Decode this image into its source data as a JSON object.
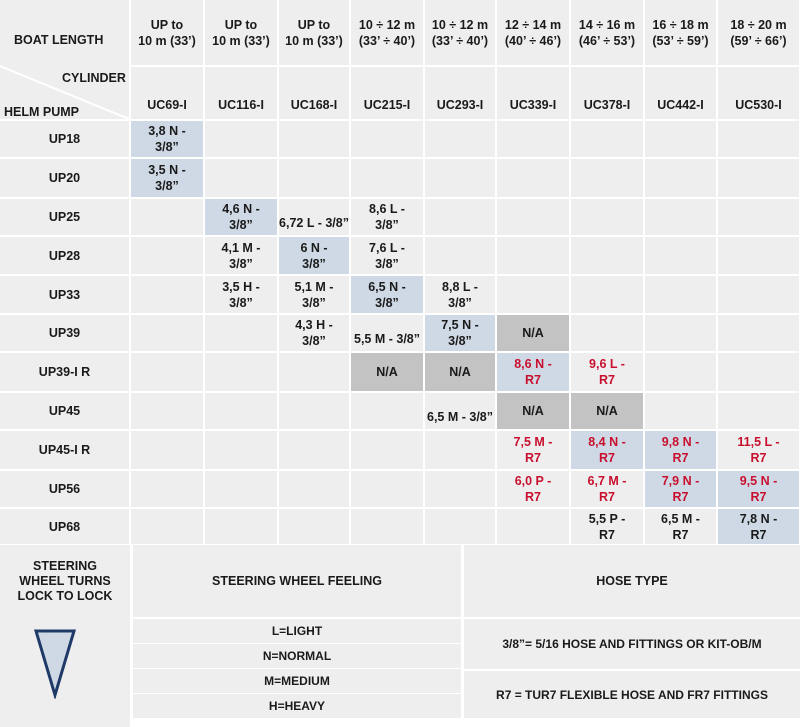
{
  "header": {
    "boat_length_label": "BOAT LENGTH",
    "cylinder_label": "CYLINDER",
    "helm_pump_label": "HELM PUMP",
    "lengths": [
      [
        "UP to",
        "10 m (33’)"
      ],
      [
        "UP to",
        "10 m (33’)"
      ],
      [
        "UP to",
        "10 m (33’)"
      ],
      [
        "10 ÷ 12 m",
        "(33’ ÷ 40’)"
      ],
      [
        "10 ÷ 12 m",
        "(33’ ÷ 40’)"
      ],
      [
        "12 ÷ 14 m",
        "(40’ ÷ 46’)"
      ],
      [
        "14 ÷ 16 m",
        "(46’ ÷ 53’)"
      ],
      [
        "16 ÷ 18 m",
        "(53’ ÷ 59’)"
      ],
      [
        "18 ÷ 20 m",
        "(59’ ÷ 66’)"
      ]
    ],
    "cylinders": [
      "UC69-I",
      "UC116-I",
      "UC168-I",
      "UC215-I",
      "UC293-I",
      "UC339-I",
      "UC378-I",
      "UC442-I",
      "UC530-I"
    ]
  },
  "pumps": [
    "UP18",
    "UP20",
    "UP25",
    "UP28",
    "UP33",
    "UP39",
    "UP39-I R",
    "UP45",
    "UP45-I R",
    "UP56",
    "UP68"
  ],
  "cells": [
    {
      "r": 0,
      "c": 0,
      "lines": [
        "3,8 N -",
        "3/8”"
      ],
      "bg": "blue"
    },
    {
      "r": 1,
      "c": 0,
      "lines": [
        "3,5 N -",
        "3/8”"
      ],
      "bg": "blue"
    },
    {
      "r": 2,
      "c": 1,
      "lines": [
        "4,6 N -",
        "3/8”"
      ],
      "bg": "blue"
    },
    {
      "r": 2,
      "c": 2,
      "lines": [
        "6,72 L - 3/8”"
      ]
    },
    {
      "r": 2,
      "c": 3,
      "lines": [
        "8,6 L -",
        "3/8”"
      ]
    },
    {
      "r": 3,
      "c": 1,
      "lines": [
        "4,1 M -",
        "3/8”"
      ]
    },
    {
      "r": 3,
      "c": 2,
      "lines": [
        "6 N -",
        "3/8”"
      ],
      "bg": "blue"
    },
    {
      "r": 3,
      "c": 3,
      "lines": [
        "7,6 L -",
        "3/8”"
      ]
    },
    {
      "r": 4,
      "c": 1,
      "lines": [
        "3,5 H -",
        "3/8”"
      ]
    },
    {
      "r": 4,
      "c": 2,
      "lines": [
        "5,1 M -",
        "3/8”"
      ]
    },
    {
      "r": 4,
      "c": 3,
      "lines": [
        "6,5 N -",
        "3/8”"
      ],
      "bg": "blue"
    },
    {
      "r": 4,
      "c": 4,
      "lines": [
        "8,8 L -",
        "3/8”"
      ]
    },
    {
      "r": 5,
      "c": 2,
      "lines": [
        "4,3 H -",
        "3/8”"
      ]
    },
    {
      "r": 5,
      "c": 3,
      "lines": [
        "5,5 M - 3/8”"
      ]
    },
    {
      "r": 5,
      "c": 4,
      "lines": [
        "7,5 N -",
        "3/8”"
      ],
      "bg": "blue"
    },
    {
      "r": 5,
      "c": 5,
      "lines": [
        "N/A"
      ],
      "bg": "gray"
    },
    {
      "r": 6,
      "c": 3,
      "lines": [
        "N/A"
      ],
      "bg": "gray"
    },
    {
      "r": 6,
      "c": 4,
      "lines": [
        "N/A"
      ],
      "bg": "gray"
    },
    {
      "r": 6,
      "c": 5,
      "lines": [
        "8,6 N -",
        "R7"
      ],
      "bg": "blue",
      "red": true
    },
    {
      "r": 6,
      "c": 6,
      "lines": [
        "9,6 L -",
        "R7"
      ],
      "red": true
    },
    {
      "r": 7,
      "c": 4,
      "lines": [
        "6,5 M - 3/8”"
      ]
    },
    {
      "r": 7,
      "c": 5,
      "lines": [
        "N/A"
      ],
      "bg": "gray"
    },
    {
      "r": 7,
      "c": 6,
      "lines": [
        "N/A"
      ],
      "bg": "gray"
    },
    {
      "r": 8,
      "c": 5,
      "lines": [
        "7,5 M -",
        "R7"
      ],
      "red": true
    },
    {
      "r": 8,
      "c": 6,
      "lines": [
        "8,4 N -",
        "R7"
      ],
      "bg": "blue",
      "red": true
    },
    {
      "r": 8,
      "c": 7,
      "lines": [
        "9,8 N -",
        "R7"
      ],
      "bg": "blue",
      "red": true
    },
    {
      "r": 8,
      "c": 8,
      "lines": [
        "11,5 L -",
        "R7"
      ],
      "red": true
    },
    {
      "r": 9,
      "c": 5,
      "lines": [
        "6,0 P -",
        "R7"
      ],
      "red": true
    },
    {
      "r": 9,
      "c": 6,
      "lines": [
        "6,7 M -",
        "R7"
      ],
      "red": true
    },
    {
      "r": 9,
      "c": 7,
      "lines": [
        "7,9 N -",
        "R7"
      ],
      "bg": "blue",
      "red": true
    },
    {
      "r": 9,
      "c": 8,
      "lines": [
        "9,5 N -",
        "R7"
      ],
      "bg": "blue",
      "red": true
    },
    {
      "r": 10,
      "c": 6,
      "lines": [
        "5,5 P -",
        "R7"
      ]
    },
    {
      "r": 10,
      "c": 7,
      "lines": [
        "6,5 M -",
        "R7"
      ]
    },
    {
      "r": 10,
      "c": 8,
      "lines": [
        "7,8 N -",
        "R7"
      ],
      "bg": "blue"
    }
  ],
  "legend": {
    "wheel_turns_label": [
      "STEERING",
      "WHEEL TURNS",
      "LOCK TO LOCK"
    ],
    "feeling_label": "STEERING WHEEL FEELING",
    "hose_label": "HOSE TYPE",
    "feelings": [
      "L=LIGHT",
      "N=NORMAL",
      "M=MEDIUM",
      "H=HEAVY"
    ],
    "hoses": [
      "3/8”= 5/16 HOSE AND FITTINGS OR KIT-OB/M",
      "R7 = TUR7 FLEXIBLE HOSE AND FR7 FITTINGS"
    ],
    "triangle_fill": "#cfd9e5",
    "triangle_stroke": "#1f3a68"
  },
  "colors": {
    "highlight_blue": "#cfd9e5",
    "na_gray": "#c3c3c3",
    "grid_bg": "#eeeeee",
    "red_text": "#c8102e"
  }
}
